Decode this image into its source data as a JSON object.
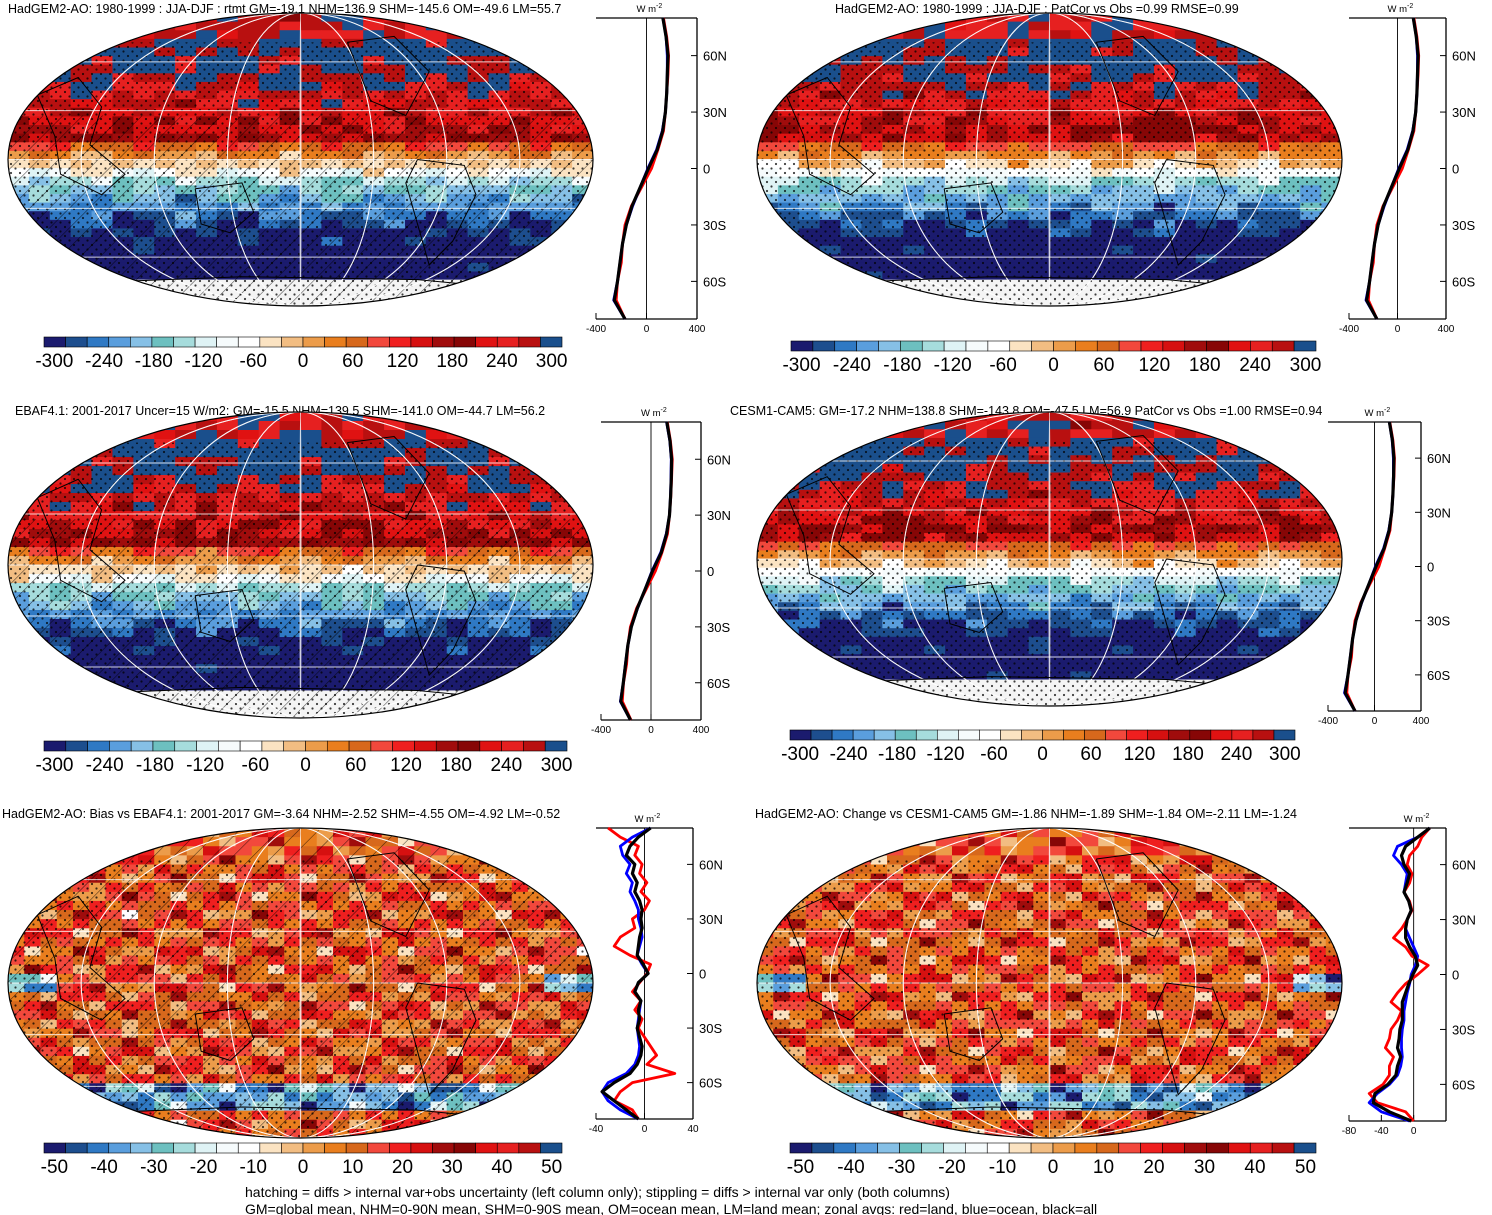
{
  "footer": {
    "line1": "hatching = diffs > internal var+obs uncertainty (left column only); stippling = diffs > internal var only (both columns)",
    "line2": "GM=global mean, NHM=0-90N mean, SHM=0-90S mean, OM=ocean mean, LM=land mean; zonal avgs: red=land, blue=ocean, black=all"
  },
  "colors": {
    "cmap": [
      "#1b1b6e",
      "#1d4e8e",
      "#2f79c4",
      "#5a9edd",
      "#86c0e6",
      "#6dc0c0",
      "#a6dcdc",
      "#dff3f5",
      "#f6fbfc",
      "#ffffff",
      "#fbe3c2",
      "#f2bd82",
      "#ec9c4a",
      "#e97e1e",
      "#d7681c",
      "#f2483c",
      "#ef1f1f",
      "#d61010",
      "#a00c0c",
      "#870606",
      "#e01212",
      "#e62020",
      "#b81010",
      "#1a4f8c"
    ],
    "land_line": "#ff0000",
    "ocean_line": "#0000ff",
    "all_line": "#000000"
  },
  "chart_data": [
    {
      "type": "heatmap",
      "title": "HadGEM2-AO: 1980-1999 : JJA-DJF : rtmt GM=-19.1 NHM=136.9 SHM=-145.6 OM=-49.6 LM=55.7",
      "colorbar_ticks": [
        "-300",
        "-240",
        "-180",
        "-120",
        "-60",
        "0",
        "60",
        "120",
        "180",
        "240",
        "300"
      ],
      "colorbar_range": [
        -300,
        300
      ],
      "hatching": "southern-and-tropical",
      "stippling": true,
      "zonal": {
        "unit": "W m",
        "unit_exp": "-2",
        "xlim": [
          -400,
          400
        ],
        "xticks": [
          "-400",
          "0",
          "400"
        ],
        "lat_ticks": [
          "60N",
          "30N",
          "0",
          "30S",
          "60S"
        ],
        "lat": [
          80,
          70,
          60,
          50,
          40,
          30,
          20,
          10,
          0,
          -10,
          -20,
          -30,
          -40,
          -50,
          -60,
          -70,
          -80
        ],
        "series": [
          {
            "name": "land",
            "values": [
              135,
              160,
              175,
              170,
              160,
              150,
              135,
              90,
              40,
              -40,
              -120,
              -170,
              -190,
              -200,
              -230,
              -240,
              -170
            ]
          },
          {
            "name": "ocean",
            "values": [
              130,
              155,
              165,
              165,
              160,
              150,
              125,
              80,
              10,
              -50,
              -110,
              -160,
              -190,
              -210,
              -230,
              -260,
              -170
            ]
          },
          {
            "name": "all",
            "values": [
              130,
              155,
              170,
              165,
              160,
              150,
              128,
              85,
              15,
              -50,
              -115,
              -160,
              -190,
              -210,
              -230,
              -255,
              -170
            ]
          }
        ]
      }
    },
    {
      "type": "heatmap",
      "title": "HadGEM2-AO: 1980-1999 : JJA-DJF : PatCor vs Obs =0.99 RMSE=0.99",
      "colorbar_ticks": [
        "-300",
        "-240",
        "-180",
        "-120",
        "-60",
        "0",
        "60",
        "120",
        "180",
        "240",
        "300"
      ],
      "colorbar_range": [
        -300,
        300
      ],
      "hatching": "none",
      "stippling": true,
      "zonal": {
        "unit": "W m",
        "unit_exp": "-2",
        "xlim": [
          -400,
          400
        ],
        "xticks": [
          "-400",
          "0",
          "400"
        ],
        "lat_ticks": [
          "60N",
          "30N",
          "0",
          "30S",
          "60S"
        ],
        "lat": [
          80,
          70,
          60,
          50,
          40,
          30,
          20,
          10,
          0,
          -10,
          -20,
          -30,
          -40,
          -50,
          -60,
          -70,
          -80
        ],
        "series": [
          {
            "name": "land",
            "values": [
              135,
              160,
              175,
              170,
              160,
              150,
              135,
              90,
              40,
              -40,
              -120,
              -170,
              -190,
              -200,
              -230,
              -240,
              -170
            ]
          },
          {
            "name": "ocean",
            "values": [
              130,
              155,
              165,
              165,
              160,
              150,
              125,
              80,
              10,
              -50,
              -110,
              -160,
              -190,
              -210,
              -230,
              -260,
              -170
            ]
          },
          {
            "name": "all",
            "values": [
              130,
              155,
              170,
              165,
              160,
              150,
              128,
              85,
              15,
              -50,
              -115,
              -160,
              -190,
              -210,
              -230,
              -255,
              -170
            ]
          }
        ]
      }
    },
    {
      "type": "heatmap",
      "title": "EBAF4.1: 2001-2017 Uncer=15 W/m2: GM=-15.5 NHM=139.5 SHM=-141.0 OM=-44.7 LM=56.2",
      "colorbar_ticks": [
        "-300",
        "-240",
        "-180",
        "-120",
        "-60",
        "0",
        "60",
        "120",
        "180",
        "240",
        "300"
      ],
      "colorbar_range": [
        -300,
        300
      ],
      "hatching": "southern-and-arctic",
      "stippling": true,
      "zonal": {
        "unit": "W m",
        "unit_exp": "-2",
        "xlim": [
          -400,
          400
        ],
        "xticks": [
          "-400",
          "0",
          "400"
        ],
        "lat_ticks": [
          "60N",
          "30N",
          "0",
          "30S",
          "60S"
        ],
        "lat": [
          80,
          70,
          60,
          50,
          40,
          30,
          20,
          10,
          0,
          -10,
          -20,
          -30,
          -40,
          -50,
          -60,
          -70,
          -80
        ],
        "series": [
          {
            "name": "land",
            "values": [
              130,
              155,
              170,
              165,
              158,
              148,
              132,
              88,
              35,
              -40,
              -115,
              -165,
              -185,
              -195,
              -220,
              -230,
              -160
            ]
          },
          {
            "name": "ocean",
            "values": [
              125,
              150,
              162,
              160,
              156,
              148,
              122,
              78,
              8,
              -48,
              -108,
              -158,
              -185,
              -205,
              -222,
              -245,
              -165
            ]
          },
          {
            "name": "all",
            "values": [
              126,
              152,
              165,
              162,
              157,
              148,
              125,
              82,
              12,
              -48,
              -110,
              -158,
              -186,
              -203,
              -222,
              -242,
              -164
            ]
          }
        ]
      }
    },
    {
      "type": "heatmap",
      "title": "CESM1-CAM5: GM=-17.2 NHM=138.8 SHM=-143.8 OM=-47.5 LM=56.9 PatCor vs Obs =1.00 RMSE=0.94",
      "colorbar_ticks": [
        "-300",
        "-240",
        "-180",
        "-120",
        "-60",
        "0",
        "60",
        "120",
        "180",
        "240",
        "300"
      ],
      "colorbar_range": [
        -300,
        300
      ],
      "hatching": "none",
      "stippling": true,
      "zonal": {
        "unit": "W m",
        "unit_exp": "-2",
        "xlim": [
          -400,
          400
        ],
        "xticks": [
          "-400",
          "0",
          "400"
        ],
        "lat_ticks": [
          "60N",
          "30N",
          "0",
          "30S",
          "60S"
        ],
        "lat": [
          80,
          70,
          60,
          50,
          40,
          30,
          20,
          10,
          0,
          -10,
          -20,
          -30,
          -40,
          -50,
          -60,
          -70,
          -80
        ],
        "series": [
          {
            "name": "land",
            "values": [
              132,
              158,
              172,
              168,
              158,
              148,
              133,
              88,
              38,
              -42,
              -118,
              -168,
              -188,
              -198,
              -228,
              -238,
              -168
            ]
          },
          {
            "name": "ocean",
            "values": [
              128,
              152,
              163,
              163,
              158,
              148,
              123,
              78,
              8,
              -50,
              -110,
              -160,
              -188,
              -208,
              -228,
              -258,
              -168
            ]
          },
          {
            "name": "all",
            "values": [
              128,
              154,
              167,
              164,
              158,
              148,
              126,
              83,
              13,
              -50,
              -113,
              -160,
              -188,
              -207,
              -228,
              -252,
              -168
            ]
          }
        ]
      }
    },
    {
      "type": "heatmap",
      "title": "HadGEM2-AO: Bias vs EBAF4.1: 2001-2017 GM=-3.64 NHM=-2.52 SHM=-4.55 OM=-4.92 LM=-0.52",
      "colorbar_ticks": [
        "-50",
        "-40",
        "-30",
        "-20",
        "-10",
        "0",
        "10",
        "20",
        "30",
        "40",
        "50"
      ],
      "colorbar_range": [
        -50,
        50
      ],
      "hatching": "widespread",
      "stippling": true,
      "zonal": {
        "unit": "W m",
        "unit_exp": "-2",
        "xlim": [
          -40,
          40
        ],
        "xticks": [
          "-40",
          "0",
          "40"
        ],
        "lat_ticks": [
          "60N",
          "30N",
          "0",
          "30S",
          "60S"
        ],
        "lat": [
          80,
          75,
          70,
          65,
          60,
          55,
          50,
          45,
          40,
          35,
          30,
          25,
          20,
          15,
          10,
          5,
          0,
          -5,
          -10,
          -15,
          -20,
          -25,
          -30,
          -35,
          -40,
          -45,
          -50,
          -55,
          -60,
          -65,
          -70,
          -75,
          -80
        ],
        "series": [
          {
            "name": "land",
            "values": [
              -30,
              -20,
              -5,
              -8,
              -2,
              -4,
              2,
              -3,
              4,
              0,
              -10,
              -8,
              -20,
              -25,
              -12,
              5,
              2,
              -4,
              -10,
              -3,
              -8,
              -2,
              -5,
              0,
              5,
              10,
              2,
              25,
              -10,
              -20,
              -25,
              -10,
              -5
            ]
          },
          {
            "name": "ocean",
            "values": [
              5,
              -10,
              -20,
              -18,
              -12,
              -15,
              -10,
              -12,
              -8,
              -5,
              -5,
              -3,
              -2,
              -4,
              -6,
              -2,
              3,
              -5,
              -8,
              -3,
              -4,
              -5,
              -6,
              -5,
              -4,
              -5,
              -8,
              -15,
              -30,
              -35,
              -30,
              -20,
              -5
            ]
          },
          {
            "name": "all",
            "values": [
              5,
              -5,
              -12,
              -15,
              -8,
              -10,
              -6,
              -8,
              -4,
              -2,
              -3,
              -2,
              -4,
              -5,
              -6,
              -1,
              3,
              -5,
              -8,
              -3,
              -5,
              -4,
              -6,
              -4,
              -2,
              -3,
              -6,
              -12,
              -25,
              -35,
              -25,
              -15,
              -5
            ]
          }
        ]
      }
    },
    {
      "type": "heatmap",
      "title": "HadGEM2-AO: Change vs CESM1-CAM5 GM=-1.86 NHM=-1.89 SHM=-1.84 OM=-2.11 LM=-1.24",
      "colorbar_ticks": [
        "-50",
        "-40",
        "-30",
        "-20",
        "-10",
        "0",
        "10",
        "20",
        "30",
        "40",
        "50"
      ],
      "colorbar_range": [
        -50,
        50
      ],
      "hatching": "none",
      "stippling": true,
      "zonal": {
        "unit": "W m",
        "unit_exp": "-2",
        "xlim": [
          -80,
          40
        ],
        "xticks": [
          "-80",
          "-40",
          "0"
        ],
        "lat_ticks": [
          "60N",
          "30N",
          "0",
          "30S",
          "60S"
        ],
        "lat": [
          80,
          75,
          70,
          65,
          60,
          55,
          50,
          45,
          40,
          35,
          30,
          25,
          20,
          15,
          10,
          5,
          0,
          -5,
          -10,
          -15,
          -20,
          -25,
          -30,
          -35,
          -40,
          -45,
          -50,
          -55,
          -60,
          -65,
          -70,
          -75,
          -80
        ],
        "series": [
          {
            "name": "land",
            "values": [
              20,
              10,
              5,
              -5,
              -8,
              -2,
              -5,
              -12,
              -5,
              -2,
              -8,
              -15,
              -25,
              -10,
              -2,
              18,
              5,
              -10,
              -20,
              -28,
              -15,
              -20,
              -28,
              -30,
              -35,
              -25,
              -30,
              -30,
              -38,
              -55,
              -45,
              -10,
              0
            ]
          },
          {
            "name": "ocean",
            "values": [
              20,
              5,
              -20,
              -25,
              -15,
              -8,
              -10,
              -12,
              -6,
              -3,
              -8,
              -10,
              -5,
              0,
              5,
              2,
              -3,
              -5,
              -8,
              -10,
              -12,
              -12,
              -14,
              -15,
              -15,
              -14,
              -16,
              -20,
              -30,
              -45,
              -55,
              -40,
              -5
            ]
          },
          {
            "name": "all",
            "values": [
              20,
              5,
              -10,
              -15,
              -12,
              -5,
              -8,
              -12,
              -6,
              -3,
              -8,
              -10,
              -10,
              -5,
              2,
              5,
              -1,
              -6,
              -10,
              -14,
              -14,
              -14,
              -17,
              -18,
              -20,
              -16,
              -20,
              -22,
              -32,
              -48,
              -50,
              -30,
              -3
            ]
          }
        ]
      }
    }
  ]
}
